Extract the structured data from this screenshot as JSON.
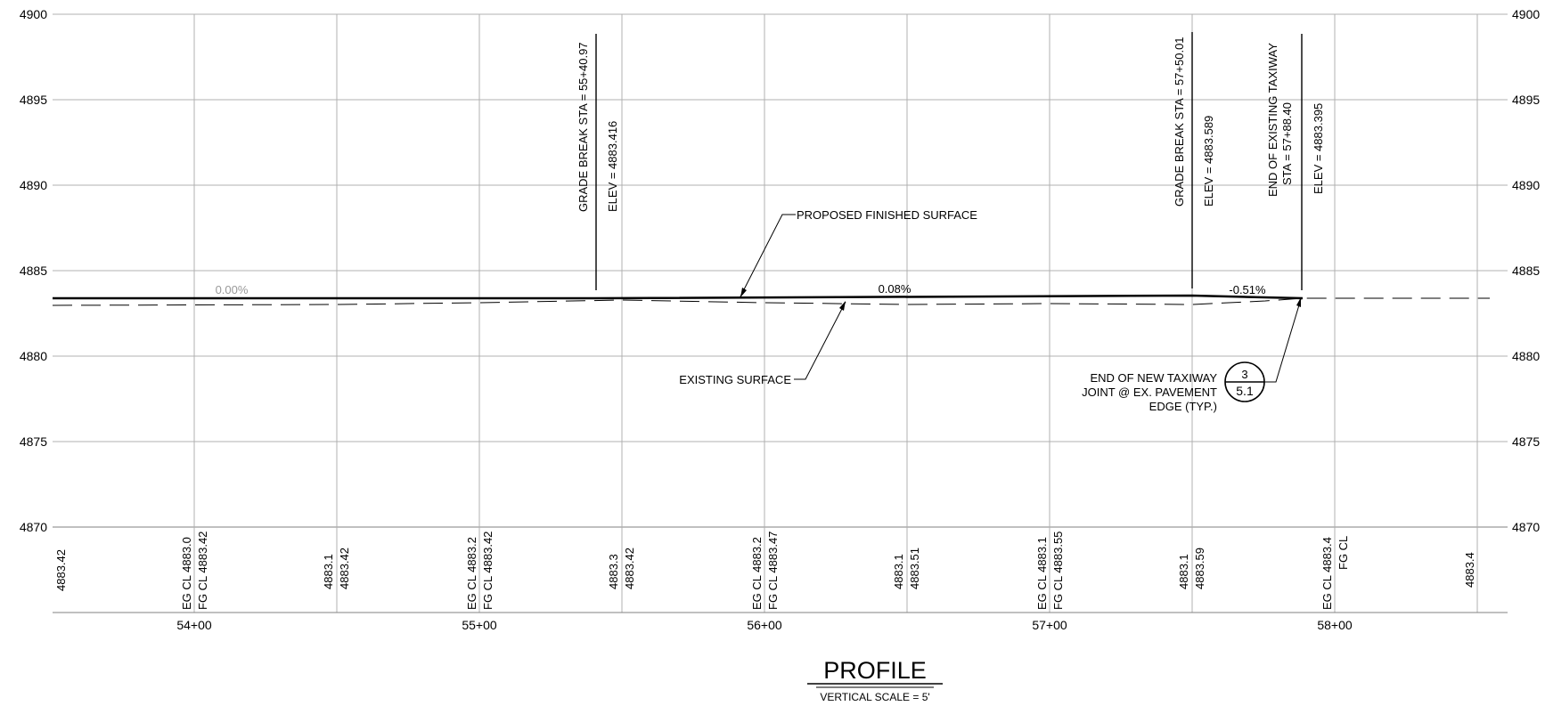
{
  "profile": {
    "y_ticks": [
      "4900",
      "4895",
      "4890",
      "4885",
      "4880",
      "4875",
      "4870"
    ],
    "stations": [
      "54+00",
      "55+00",
      "56+00",
      "57+00",
      "58+00"
    ],
    "grades": {
      "g1": "0.00%",
      "g2": "0.08%",
      "g3": "-0.51%"
    },
    "callouts": {
      "gb1_sta": "GRADE BREAK STA = 55+40.97",
      "gb1_elev": "ELEV =  4883.416",
      "gb2_sta": "GRADE BREAK STA = 57+50.01",
      "gb2_elev": "ELEV =  4883.589",
      "ee_line1": "END OF EXISTING TAXIWAY",
      "ee_line2": "STA = 57+88.40",
      "ee_elev": "ELEV =  4883.395",
      "proposed": "PROPOSED FINISHED SURFACE",
      "existing": "EXISTING SURFACE",
      "joint_line1": "END OF NEW  TAXIWAY",
      "joint_line2": "JOINT @ EX. PAVEMENT",
      "joint_line3": "EDGE (TYP.)",
      "detail_num": "3",
      "detail_sheet": "5.1"
    },
    "bottom_labels": {
      "c0a": "4883.42",
      "c1a": "EG CL 4883.0",
      "c1b": "FG CL 4883.42",
      "c2a": "4883.1",
      "c2b": "4883.42",
      "c3a": "EG CL 4883.2",
      "c3b": "FG CL 4883.42",
      "c4a": "4883.3",
      "c4b": "4883.42",
      "c5a": "EG CL 4883.2",
      "c5b": "FG CL 4883.47",
      "c6a": "4883.1",
      "c6b": "4883.51",
      "c7a": "EG CL 4883.1",
      "c7b": "FG CL 4883.55",
      "c8a": "4883.1",
      "c8b": "4883.59",
      "c9a": "EG CL 4883.4",
      "c9b": "FG CL",
      "c10a": "4883.4"
    },
    "title": "PROFILE",
    "subtitle": "VERTICAL SCALE = 5'"
  },
  "colors": {
    "ink": "#000000",
    "grid": "#b0b0b0",
    "muted": "#999999"
  }
}
